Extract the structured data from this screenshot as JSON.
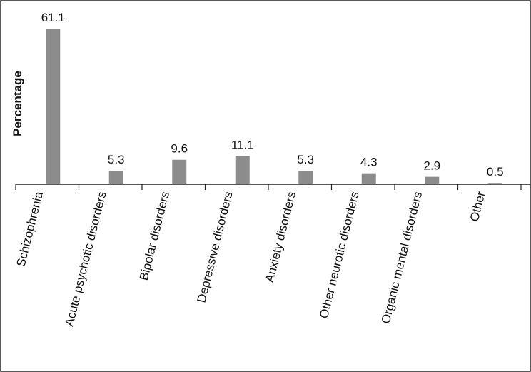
{
  "chart_data": {
    "type": "bar",
    "title": "",
    "xlabel": "",
    "ylabel": "Percentage",
    "categories": [
      "Schizophrenia",
      "Acute psychotic disorders",
      "Bipolar disorders",
      "Depressive disorders",
      "Anxiety disorders",
      "Other neurotic disorders",
      "Organic mental disorders",
      "Other"
    ],
    "values": [
      61.1,
      5.3,
      9.6,
      11.1,
      5.3,
      4.3,
      2.9,
      0.5
    ],
    "value_labels": [
      "61.1",
      "5.3",
      "9.6",
      "11.1",
      "5.3",
      "4.3",
      "2.9",
      "0.5"
    ],
    "ylim": [
      0,
      61.1
    ],
    "grid": false,
    "legend": "none",
    "bar_color": "#8c8c8c"
  }
}
